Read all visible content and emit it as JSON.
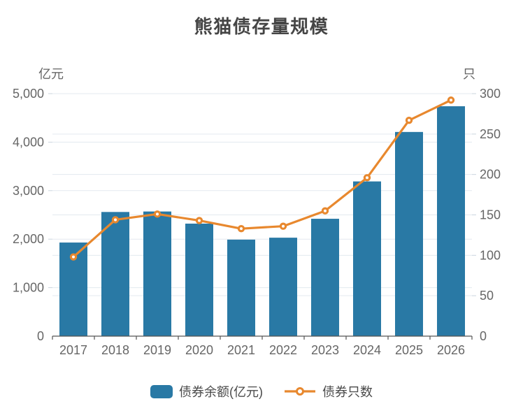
{
  "chart_data": {
    "type": "bar",
    "subtype": "bar-line-combo",
    "title": "熊猫债存量规模",
    "categories": [
      "2017",
      "2018",
      "2019",
      "2020",
      "2021",
      "2022",
      "2023",
      "2024",
      "2025",
      "2026"
    ],
    "series": [
      {
        "name": "债券余额(亿元)",
        "type": "bar",
        "axis": "left",
        "color": "#2979A5",
        "values": [
          1930,
          2560,
          2570,
          2320,
          1990,
          2030,
          2420,
          3190,
          4210,
          4740
        ]
      },
      {
        "name": "债券只数",
        "type": "line",
        "axis": "right",
        "color": "#E8882E",
        "values": [
          98,
          144,
          151,
          143,
          133,
          136,
          155,
          196,
          267,
          292
        ]
      }
    ],
    "left_axis": {
      "unit": "亿元",
      "min": 0,
      "max": 5000,
      "tick_interval": 1000,
      "tick_labels": [
        "0",
        "1,000",
        "2,000",
        "3,000",
        "4,000",
        "5,000"
      ]
    },
    "right_axis": {
      "unit": "只",
      "min": 0,
      "max": 300,
      "tick_interval": 50,
      "tick_labels": [
        "0",
        "50",
        "100",
        "150",
        "200",
        "250",
        "300"
      ]
    },
    "grid": true,
    "legend_position": "bottom",
    "colors": {
      "grid_line": "#E3E9EF",
      "axis_line": "#555555",
      "tick_text": "#666666",
      "title_text": "#454545",
      "marker_fill": "#ffffff",
      "background": "#ffffff"
    }
  }
}
